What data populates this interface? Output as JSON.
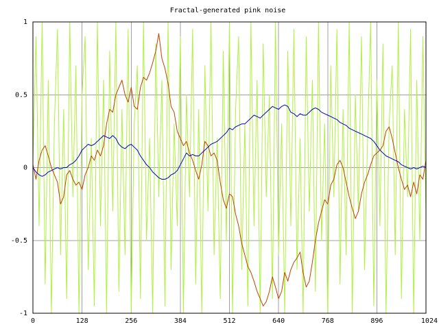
{
  "chart_data": {
    "type": "line",
    "title": "Fractal-generated pink noise",
    "xlabel": "",
    "ylabel": "",
    "xlim": [
      0,
      1024
    ],
    "ylim": [
      -1,
      1
    ],
    "xticks": [
      "0",
      "128",
      "256",
      "384",
      "512",
      "640",
      "768",
      "896",
      "1024"
    ],
    "xtick_values": [
      0,
      128,
      256,
      384,
      512,
      640,
      768,
      896,
      1024
    ],
    "yticks": [
      "1",
      "0.5",
      "0",
      "-0.5",
      "-1"
    ],
    "ytick_values": [
      1,
      0.5,
      0,
      -0.5,
      -1
    ],
    "grid": true,
    "colors": {
      "grid": "#a0a0a0",
      "frame": "#000000"
    },
    "series": [
      {
        "color": "#b0f040",
        "style": "high-frequency noise oscillating between -1 and 1",
        "x": [
          0,
          8,
          16,
          24,
          32,
          40,
          48,
          56,
          64,
          72,
          80,
          88,
          96,
          104,
          112,
          120,
          128,
          136,
          144,
          152,
          160,
          168,
          176,
          184,
          192,
          200,
          208,
          216,
          224,
          232,
          240,
          248,
          256,
          264,
          272,
          280,
          288,
          296,
          304,
          312,
          320,
          328,
          336,
          344,
          352,
          360,
          368,
          376,
          384,
          392,
          400,
          408,
          416,
          424,
          432,
          440,
          448,
          456,
          464,
          472,
          480,
          488,
          496,
          504,
          512,
          520,
          528,
          536,
          544,
          552,
          560,
          568,
          576,
          584,
          592,
          600,
          608,
          616,
          624,
          632,
          640,
          648,
          656,
          664,
          672,
          680,
          688,
          696,
          704,
          712,
          720,
          728,
          736,
          744,
          752,
          760,
          768,
          776,
          784,
          792,
          800,
          808,
          816,
          824,
          832,
          840,
          848,
          856,
          864,
          872,
          880,
          888,
          896,
          904,
          912,
          920,
          928,
          936,
          944,
          952,
          960,
          968,
          976,
          984,
          992,
          1000,
          1008,
          1016,
          1024
        ],
        "y": [
          0.05,
          0.9,
          -0.4,
          1.0,
          -0.8,
          0.6,
          -1.0,
          0.3,
          0.95,
          -0.6,
          0.4,
          -0.9,
          1.0,
          -0.2,
          0.7,
          -1.0,
          0.5,
          0.9,
          -0.7,
          0.2,
          -0.95,
          1.0,
          -0.4,
          0.6,
          -1.0,
          0.8,
          -0.3,
          1.0,
          -0.85,
          0.4,
          -0.6,
          0.95,
          -1.0,
          0.3,
          0.7,
          -0.9,
          1.0,
          -0.5,
          0.2,
          -1.0,
          0.85,
          -0.2,
          0.6,
          -0.95,
          1.0,
          -0.7,
          0.3,
          -0.4,
          0.9,
          -1.0,
          0.5,
          -0.2,
          0.95,
          -0.8,
          0.4,
          -1.0,
          0.7,
          -0.3,
          1.0,
          -0.6,
          0.2,
          -0.9,
          0.8,
          -0.5,
          1.0,
          -1.0,
          0.4,
          0.9,
          -0.7,
          0.3,
          -0.95,
          1.0,
          -0.4,
          0.6,
          -1.0,
          0.85,
          -0.2,
          0.5,
          -0.9,
          1.0,
          -0.6,
          0.3,
          -1.0,
          0.8,
          -0.4,
          0.95,
          -0.7,
          0.2,
          -1.0,
          0.9,
          -0.3,
          0.6,
          -0.85,
          1.0,
          -0.5,
          0.3,
          -1.0,
          0.7,
          -0.2,
          0.95,
          -0.8,
          0.4,
          -0.6,
          1.0,
          -1.0,
          0.5,
          -0.3,
          0.9,
          -0.7,
          0.2,
          1.0,
          -0.95,
          0.6,
          -0.4,
          0.85,
          -1.0,
          0.3,
          0.7,
          -0.6,
          1.0,
          -0.9,
          0.4,
          -0.2,
          0.95,
          -1.0,
          0.6,
          -0.5,
          0.9,
          -0.3
        ]
      },
      {
        "color": "#c04000",
        "style": "pink noise (fractal)",
        "x": [
          0,
          8,
          16,
          24,
          32,
          40,
          48,
          56,
          64,
          72,
          80,
          88,
          96,
          104,
          112,
          120,
          128,
          136,
          144,
          152,
          160,
          168,
          176,
          184,
          192,
          200,
          208,
          216,
          224,
          232,
          240,
          248,
          256,
          264,
          272,
          280,
          288,
          296,
          304,
          312,
          320,
          328,
          336,
          344,
          352,
          360,
          368,
          376,
          384,
          392,
          400,
          408,
          416,
          424,
          432,
          440,
          448,
          456,
          464,
          472,
          480,
          488,
          496,
          504,
          512,
          520,
          528,
          536,
          544,
          552,
          560,
          568,
          576,
          584,
          592,
          600,
          608,
          616,
          624,
          632,
          640,
          648,
          656,
          664,
          672,
          680,
          688,
          696,
          704,
          712,
          720,
          728,
          736,
          744,
          752,
          760,
          768,
          776,
          784,
          792,
          800,
          808,
          816,
          824,
          832,
          840,
          848,
          856,
          864,
          872,
          880,
          888,
          896,
          904,
          912,
          920,
          928,
          936,
          944,
          952,
          960,
          968,
          976,
          984,
          992,
          1000,
          1008,
          1016,
          1024
        ],
        "y": [
          0.02,
          -0.08,
          0.05,
          0.12,
          0.15,
          0.08,
          0.0,
          -0.05,
          -0.1,
          -0.25,
          -0.2,
          -0.05,
          -0.02,
          -0.08,
          -0.12,
          -0.1,
          -0.15,
          -0.05,
          0.0,
          0.08,
          0.05,
          0.12,
          0.08,
          0.15,
          0.3,
          0.4,
          0.38,
          0.5,
          0.55,
          0.6,
          0.5,
          0.45,
          0.55,
          0.42,
          0.4,
          0.55,
          0.62,
          0.6,
          0.65,
          0.72,
          0.8,
          0.92,
          0.75,
          0.68,
          0.58,
          0.42,
          0.38,
          0.25,
          0.2,
          0.15,
          0.18,
          0.1,
          0.05,
          -0.02,
          -0.08,
          0.02,
          0.18,
          0.15,
          0.08,
          0.1,
          0.05,
          -0.1,
          -0.22,
          -0.28,
          -0.18,
          -0.2,
          -0.32,
          -0.4,
          -0.52,
          -0.6,
          -0.68,
          -0.72,
          -0.78,
          -0.85,
          -0.9,
          -0.95,
          -0.92,
          -0.85,
          -0.75,
          -0.82,
          -0.9,
          -0.85,
          -0.72,
          -0.78,
          -0.7,
          -0.65,
          -0.62,
          -0.58,
          -0.72,
          -0.82,
          -0.78,
          -0.65,
          -0.5,
          -0.38,
          -0.3,
          -0.22,
          -0.25,
          -0.12,
          -0.08,
          0.02,
          0.05,
          0.0,
          -0.1,
          -0.2,
          -0.28,
          -0.35,
          -0.3,
          -0.18,
          -0.1,
          -0.05,
          0.02,
          0.08,
          0.1,
          0.12,
          0.15,
          0.25,
          0.28,
          0.2,
          0.1,
          0.0,
          -0.08,
          -0.15,
          -0.12,
          -0.2,
          -0.1,
          -0.18,
          -0.05,
          -0.08,
          0.05
        ]
      },
      {
        "color": "#0000c0",
        "style": "smooth low-frequency line",
        "x": [
          0,
          8,
          16,
          24,
          32,
          40,
          48,
          56,
          64,
          72,
          80,
          88,
          96,
          104,
          112,
          120,
          128,
          136,
          144,
          152,
          160,
          168,
          176,
          184,
          192,
          200,
          208,
          216,
          224,
          232,
          240,
          248,
          256,
          264,
          272,
          280,
          288,
          296,
          304,
          312,
          320,
          328,
          336,
          344,
          352,
          360,
          368,
          376,
          384,
          392,
          400,
          408,
          416,
          424,
          432,
          440,
          448,
          456,
          464,
          472,
          480,
          488,
          496,
          504,
          512,
          520,
          528,
          536,
          544,
          552,
          560,
          568,
          576,
          584,
          592,
          600,
          608,
          616,
          624,
          632,
          640,
          648,
          656,
          664,
          672,
          680,
          688,
          696,
          704,
          712,
          720,
          728,
          736,
          744,
          752,
          760,
          768,
          776,
          784,
          792,
          800,
          808,
          816,
          824,
          832,
          840,
          848,
          856,
          864,
          872,
          880,
          888,
          896,
          904,
          912,
          920,
          928,
          936,
          944,
          952,
          960,
          968,
          976,
          984,
          992,
          1000,
          1008,
          1016,
          1024
        ],
        "y": [
          0.0,
          -0.03,
          -0.05,
          -0.06,
          -0.05,
          -0.03,
          -0.02,
          -0.01,
          0.0,
          -0.01,
          0.0,
          0.0,
          0.02,
          0.03,
          0.05,
          0.08,
          0.12,
          0.14,
          0.16,
          0.15,
          0.16,
          0.18,
          0.2,
          0.22,
          0.21,
          0.2,
          0.22,
          0.2,
          0.16,
          0.14,
          0.13,
          0.15,
          0.16,
          0.14,
          0.12,
          0.08,
          0.05,
          0.02,
          0.0,
          -0.03,
          -0.05,
          -0.07,
          -0.08,
          -0.08,
          -0.07,
          -0.05,
          -0.04,
          -0.02,
          0.02,
          0.06,
          0.1,
          0.08,
          0.09,
          0.08,
          0.08,
          0.1,
          0.12,
          0.14,
          0.16,
          0.17,
          0.18,
          0.2,
          0.22,
          0.24,
          0.27,
          0.26,
          0.28,
          0.29,
          0.3,
          0.3,
          0.32,
          0.34,
          0.36,
          0.35,
          0.34,
          0.36,
          0.38,
          0.4,
          0.42,
          0.41,
          0.4,
          0.42,
          0.43,
          0.42,
          0.38,
          0.37,
          0.35,
          0.37,
          0.36,
          0.36,
          0.38,
          0.4,
          0.41,
          0.4,
          0.38,
          0.37,
          0.36,
          0.35,
          0.34,
          0.33,
          0.31,
          0.3,
          0.29,
          0.27,
          0.26,
          0.25,
          0.24,
          0.23,
          0.22,
          0.21,
          0.2,
          0.18,
          0.15,
          0.12,
          0.1,
          0.08,
          0.07,
          0.06,
          0.05,
          0.04,
          0.02,
          0.01,
          0.0,
          -0.01,
          0.0,
          -0.01,
          0.0,
          0.01,
          0.0
        ]
      }
    ]
  }
}
